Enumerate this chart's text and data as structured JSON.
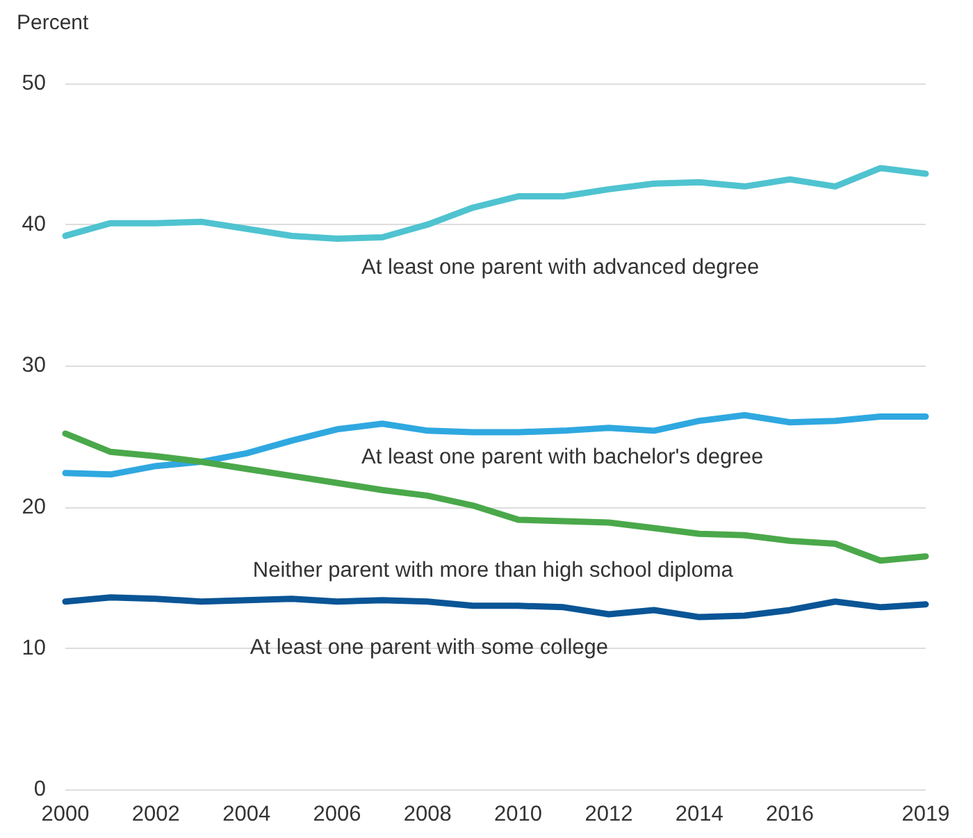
{
  "chart_data": {
    "type": "line",
    "ylabel": "Percent",
    "x": [
      2000,
      2001,
      2002,
      2003,
      2004,
      2005,
      2006,
      2007,
      2008,
      2009,
      2010,
      2011,
      2012,
      2013,
      2014,
      2015,
      2016,
      2017,
      2018,
      2019
    ],
    "series": [
      {
        "name": "At least one parent with advanced degree",
        "color": "#4fc3d0",
        "values": [
          39.2,
          40.1,
          40.1,
          40.2,
          39.7,
          39.2,
          39.0,
          39.1,
          40.0,
          41.2,
          42.0,
          42.0,
          42.5,
          42.9,
          43.0,
          42.7,
          43.2,
          42.7,
          44.0,
          43.6
        ]
      },
      {
        "name": "At least one parent with bachelor's degree",
        "color": "#2fa8e0",
        "values": [
          22.4,
          22.3,
          22.9,
          23.2,
          23.8,
          24.7,
          25.5,
          25.9,
          25.4,
          25.3,
          25.3,
          25.4,
          25.6,
          25.4,
          26.1,
          26.5,
          26.0,
          26.1,
          26.4,
          26.4
        ]
      },
      {
        "name": "Neither parent with more than high school diploma",
        "color": "#4aa84a",
        "values": [
          25.2,
          23.9,
          23.6,
          23.2,
          22.7,
          22.2,
          21.7,
          21.2,
          20.8,
          20.1,
          19.1,
          19.0,
          18.9,
          18.5,
          18.1,
          18.0,
          17.6,
          17.4,
          16.2,
          16.5
        ]
      },
      {
        "name": "At least one parent with some college",
        "color": "#0a5596",
        "values": [
          13.3,
          13.6,
          13.5,
          13.3,
          13.4,
          13.5,
          13.3,
          13.4,
          13.3,
          13.0,
          13.0,
          12.9,
          12.4,
          12.7,
          12.2,
          12.3,
          12.7,
          13.3,
          12.9,
          13.1
        ]
      }
    ],
    "xlim": [
      2000,
      2019
    ],
    "xticks": [
      2000,
      2002,
      2004,
      2006,
      2008,
      2010,
      2012,
      2014,
      2016,
      2019
    ],
    "ylim": [
      0,
      50
    ],
    "yticks": [
      0,
      10,
      20,
      30,
      40,
      50
    ],
    "grid": "y",
    "marker": "none",
    "line_style": "solid"
  }
}
